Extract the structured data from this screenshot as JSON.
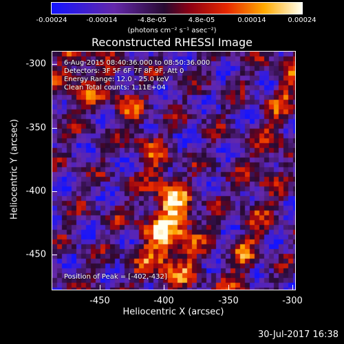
{
  "colorbar": {
    "ticks": [
      "-0.00024",
      "-0.00014",
      "-4.8e-05",
      "4.8e-05",
      "0.00014",
      "0.00024"
    ],
    "units": "(photons cm⁻² s⁻¹ asec⁻²)"
  },
  "title": "Reconstructed RHESSI Image",
  "annotations": {
    "time": "6-Aug-2015 08:40:36.000 to 08:50:36.000",
    "detectors": "Detectors: 3F 5F 6F 7F 8F 9F, Att 0",
    "energy": "Energy Range: 12.0 - 25.0 keV",
    "clean": "Clean     Total counts: 1.11E+04",
    "peak": "Position of Peak = [-402,-432]"
  },
  "axes": {
    "xlabel": "Heliocentric X (arcsec)",
    "ylabel": "Heliocentric Y (arcsec)",
    "xticks": [
      "-450",
      "-400",
      "-350",
      "-300"
    ],
    "yticks": [
      "-300",
      "-350",
      "-400",
      "-450"
    ]
  },
  "footer": {
    "date": "30-Jul-2017 16:38"
  }
}
